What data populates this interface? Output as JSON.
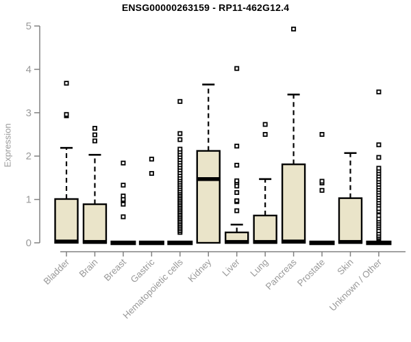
{
  "title": "ENSG00000263159 - RP11-462G12.4",
  "chart_data": {
    "type": "boxplot",
    "title": "ENSG00000263159 - RP11-462G12.4",
    "xlabel": "",
    "ylabel": "Expression",
    "ylim": [
      0,
      5
    ],
    "yticks": [
      "0",
      "1",
      "2",
      "3",
      "4",
      "5"
    ],
    "grid": false,
    "legend": "none",
    "x_tick_label_rotation": 45,
    "colors": {
      "box_fill": "#EAE4C9",
      "box_stroke": "#000000",
      "median": "#000000",
      "whisker": "#000000",
      "outlier_stroke": "#000000",
      "outlier_fill": "#ffffff",
      "axis": "#808080",
      "tick_label": "#999999",
      "title": "#000000"
    },
    "categories": [
      "Bladder",
      "Brain",
      "Breast",
      "Gastric",
      "Hematopoietic cells",
      "Kidney",
      "Liver",
      "Lung",
      "Pancreas",
      "Prostate",
      "Skin",
      "Unknown / Other"
    ],
    "series": [
      {
        "label": "Bladder",
        "q1": 0,
        "median": 0.03,
        "q3": 1.01,
        "whisker_low": 0,
        "whisker_high": 2.19,
        "outliers": [
          2.93,
          2.96,
          3.68
        ]
      },
      {
        "label": "Brain",
        "q1": 0,
        "median": 0.02,
        "q3": 0.89,
        "whisker_low": 0,
        "whisker_high": 2.03,
        "outliers": [
          2.35,
          2.49,
          2.64
        ]
      },
      {
        "label": "Breast",
        "q1": 0,
        "median": 0,
        "q3": 0,
        "whisker_low": 0,
        "whisker_high": 0,
        "outliers": [
          0.6,
          0.89,
          0.97,
          1.0,
          1.08,
          1.33,
          1.84
        ]
      },
      {
        "label": "Gastric",
        "q1": 0,
        "median": 0,
        "q3": 0,
        "whisker_low": 0,
        "whisker_high": 0,
        "outliers": [
          1.6,
          1.93
        ]
      },
      {
        "label": "Hematopoietic cells",
        "q1": 0,
        "median": 0,
        "q3": 0,
        "whisker_low": 0,
        "whisker_high": 0,
        "outliers": [
          0.24,
          0.28,
          0.32,
          0.36,
          0.4,
          0.44,
          0.48,
          0.52,
          0.56,
          0.6,
          0.64,
          0.68,
          0.72,
          0.76,
          0.8,
          0.84,
          0.88,
          0.92,
          0.96,
          1.0,
          1.04,
          1.08,
          1.12,
          1.16,
          1.2,
          1.25,
          1.3,
          1.35,
          1.4,
          1.45,
          1.5,
          1.56,
          1.62,
          1.68,
          1.74,
          1.8,
          1.86,
          1.92,
          1.98,
          2.04,
          2.1,
          2.16,
          2.38,
          2.52,
          3.26
        ]
      },
      {
        "label": "Kidney",
        "q1": 0,
        "median": 1.47,
        "q3": 2.12,
        "whisker_low": 0,
        "whisker_high": 3.65,
        "outliers": []
      },
      {
        "label": "Liver",
        "q1": 0,
        "median": 0.02,
        "q3": 0.24,
        "whisker_low": 0,
        "whisker_high": 0.42,
        "outliers": [
          0.74,
          0.95,
          0.97,
          1.16,
          1.31,
          1.39,
          1.43,
          1.79,
          2.23,
          4.02
        ]
      },
      {
        "label": "Lung",
        "q1": 0,
        "median": 0.02,
        "q3": 0.63,
        "whisker_low": 0,
        "whisker_high": 1.47,
        "outliers": [
          2.5,
          2.73
        ]
      },
      {
        "label": "Pancreas",
        "q1": 0,
        "median": 0.03,
        "q3": 1.81,
        "whisker_low": 0,
        "whisker_high": 3.42,
        "outliers": [
          4.93
        ]
      },
      {
        "label": "Prostate",
        "q1": 0,
        "median": 0,
        "q3": 0,
        "whisker_low": 0,
        "whisker_high": 0,
        "outliers": [
          1.21,
          1.38,
          1.42,
          2.5
        ]
      },
      {
        "label": "Skin",
        "q1": 0,
        "median": 0.02,
        "q3": 1.03,
        "whisker_low": 0,
        "whisker_high": 2.07,
        "outliers": []
      },
      {
        "label": "Unknown / Other",
        "q1": 0,
        "median": 0,
        "q3": 0,
        "whisker_low": 0,
        "whisker_high": 0,
        "outliers": [
          0.1,
          0.13,
          0.17,
          0.22,
          0.28,
          0.35,
          0.4,
          0.45,
          0.5,
          0.55,
          0.63,
          0.73,
          0.79,
          0.87,
          0.93,
          0.99,
          1.05,
          1.11,
          1.17,
          1.23,
          1.29,
          1.35,
          1.41,
          1.47,
          1.54,
          1.6,
          1.66,
          1.72,
          1.97,
          2.26,
          3.48
        ]
      }
    ]
  }
}
